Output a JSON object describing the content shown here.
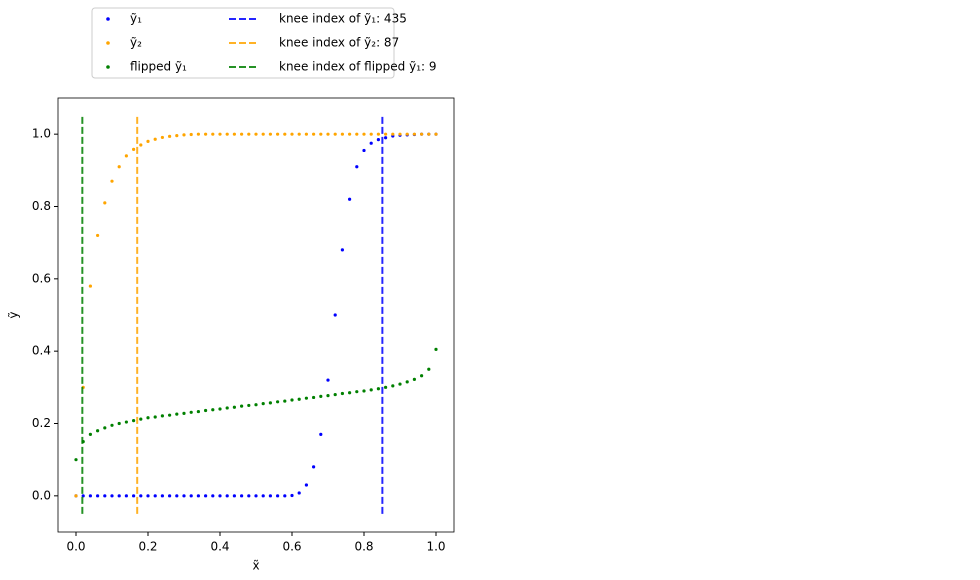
{
  "chart_data": {
    "type": "scatter",
    "xlabel": "x̃",
    "ylabel": "ỹ",
    "xlim": [
      -0.05,
      1.05
    ],
    "ylim": [
      -0.1,
      1.1
    ],
    "xticks": [
      {
        "value": 0,
        "label": "0.0"
      },
      0.2,
      0.4,
      0.6,
      0.8,
      {
        "value": 1,
        "label": "1.0"
      }
    ],
    "yticks": [
      {
        "value": 0,
        "label": "0.0"
      },
      0.2,
      0.4,
      0.6,
      0.8,
      {
        "value": 1,
        "label": "1.0"
      }
    ],
    "x": [
      0,
      0.02,
      0.04,
      0.06,
      0.08,
      0.1,
      0.12,
      0.14,
      0.16,
      0.18,
      0.2,
      0.22,
      0.24,
      0.26,
      0.28,
      0.3,
      0.32,
      0.34,
      0.36,
      0.38,
      0.4,
      0.42,
      0.44,
      0.46,
      0.48,
      0.5,
      0.52,
      0.54,
      0.56,
      0.58,
      0.6,
      0.62,
      0.64,
      0.66,
      0.68,
      0.7,
      0.72,
      0.74,
      0.76,
      0.78,
      0.8,
      0.82,
      0.84,
      0.86,
      0.88,
      0.9,
      0.92,
      0.94,
      0.96,
      0.98,
      1
    ],
    "series": [
      {
        "name": "ỹ₁",
        "color": "#0000ff",
        "values": [
          0,
          0,
          0,
          0,
          0,
          0,
          0,
          0,
          0,
          0,
          0,
          0,
          0,
          0,
          0,
          0,
          0,
          0,
          0,
          0,
          0,
          0,
          0,
          0,
          0,
          0,
          0,
          0,
          0,
          0,
          0.001,
          0.008,
          0.03,
          0.08,
          0.17,
          0.32,
          0.5,
          0.68,
          0.82,
          0.91,
          0.955,
          0.975,
          0.985,
          0.99,
          0.995,
          0.997,
          0.998,
          0.999,
          1,
          1,
          1
        ]
      },
      {
        "name": "ỹ₂",
        "color": "#ffa500",
        "values": [
          0,
          0.3,
          0.58,
          0.72,
          0.81,
          0.87,
          0.91,
          0.94,
          0.958,
          0.97,
          0.98,
          0.986,
          0.991,
          0.994,
          0.996,
          0.998,
          0.999,
          1,
          1,
          1,
          1,
          1,
          1,
          1,
          1,
          1,
          1,
          1,
          1,
          1,
          1,
          1,
          1,
          1,
          1,
          1,
          1,
          1,
          1,
          1,
          1,
          1,
          1,
          1,
          1,
          1,
          1,
          1,
          1,
          1,
          1
        ]
      },
      {
        "name": "flipped ỹ₁",
        "color": "#008000",
        "values": [
          0.1,
          0.15,
          0.17,
          0.18,
          0.188,
          0.195,
          0.2,
          0.204,
          0.208,
          0.212,
          0.216,
          0.218,
          0.221,
          0.223,
          0.226,
          0.228,
          0.231,
          0.233,
          0.236,
          0.238,
          0.24,
          0.243,
          0.245,
          0.248,
          0.25,
          0.252,
          0.255,
          0.257,
          0.26,
          0.262,
          0.265,
          0.267,
          0.27,
          0.272,
          0.275,
          0.277,
          0.28,
          0.283,
          0.285,
          0.288,
          0.29,
          0.293,
          0.296,
          0.3,
          0.304,
          0.309,
          0.315,
          0.322,
          0.332,
          0.35,
          0.405
        ]
      }
    ],
    "knee_lines_ylim": [
      -0.05,
      1.05
    ],
    "knee_lines": [
      {
        "name": "knee index of ỹ₁: 435",
        "color": "#0000ff",
        "x": 0.851
      },
      {
        "name": "knee index of ỹ₂: 87",
        "color": "#ffa500",
        "x": 0.17
      },
      {
        "name": "knee index of flipped ỹ₁: 9",
        "color": "#008000",
        "x": 0.0176
      }
    ]
  }
}
